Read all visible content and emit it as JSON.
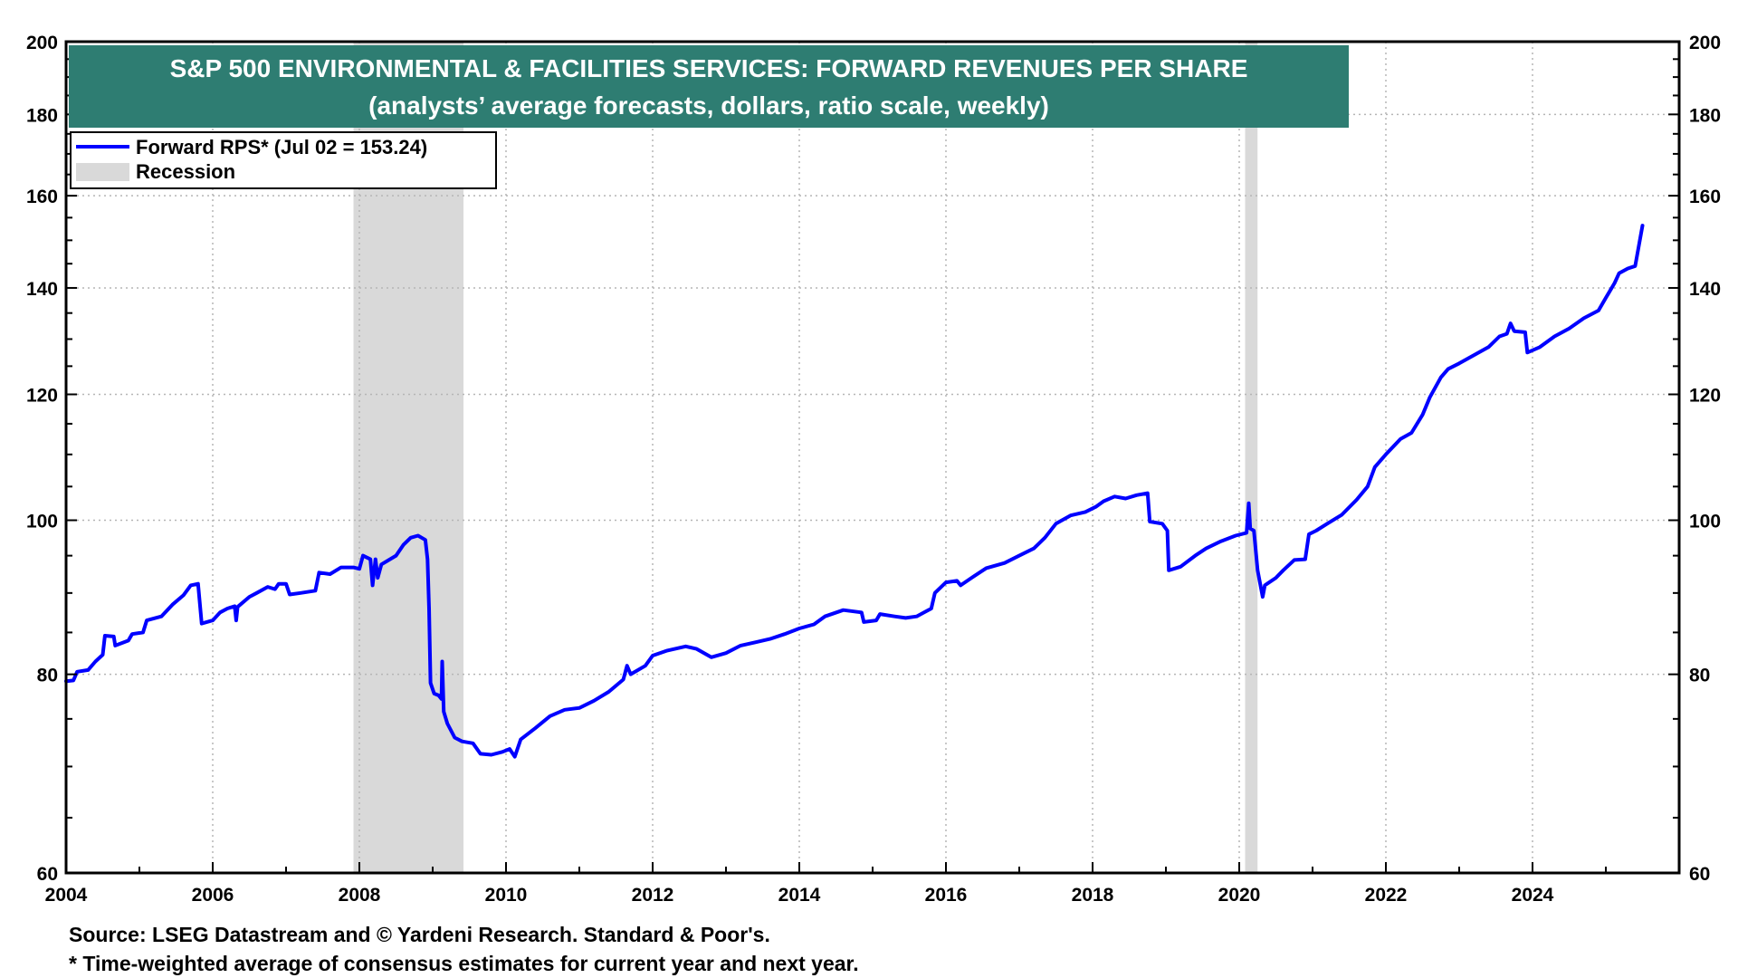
{
  "colors": {
    "title_bg": "#2e7d72",
    "series": "#0000ff",
    "recession": "#d9d9d9",
    "grid": "#b5b5b5"
  },
  "notes": {
    "source": "Source: LSEG Datastream and © Yardeni Research. Standard & Poor's.",
    "footnote": "* Time-weighted average of consensus estimates for current year and next year."
  },
  "chart_data": {
    "type": "line",
    "title": "S&P 500 ENVIRONMENTAL & FACILITIES SERVICES: FORWARD REVENUES PER SHARE",
    "subtitle": "(analysts’ average forecasts, dollars, ratio scale, weekly)",
    "y_scale": "log",
    "xlim": [
      2004,
      2026
    ],
    "ylim": [
      60,
      200
    ],
    "x_ticks": [
      "2004",
      "2006",
      "2008",
      "2010",
      "2012",
      "2014",
      "2016",
      "2018",
      "2020",
      "2022",
      "2024"
    ],
    "y_ticks": [
      "60",
      "80",
      "100",
      "120",
      "140",
      "160",
      "180",
      "200"
    ],
    "grid": true,
    "legend_position": "top-left",
    "legend": [
      {
        "label": "Forward RPS* (Jul 02 = 153.24)",
        "kind": "line"
      },
      {
        "label": "Recession",
        "kind": "band"
      }
    ],
    "recessions": [
      [
        2007.92,
        2009.42
      ],
      [
        2020.08,
        2020.25
      ]
    ],
    "series": [
      {
        "name": "Forward RPS* (Jul 02 = 153.24)",
        "points": [
          [
            2004.0,
            79.2
          ],
          [
            2004.1,
            79.3
          ],
          [
            2004.15,
            80.3
          ],
          [
            2004.3,
            80.5
          ],
          [
            2004.4,
            81.5
          ],
          [
            2004.5,
            82.3
          ],
          [
            2004.53,
            84.6
          ],
          [
            2004.65,
            84.5
          ],
          [
            2004.67,
            83.4
          ],
          [
            2004.85,
            84.0
          ],
          [
            2004.9,
            84.8
          ],
          [
            2005.05,
            85.0
          ],
          [
            2005.1,
            86.5
          ],
          [
            2005.3,
            87.0
          ],
          [
            2005.45,
            88.5
          ],
          [
            2005.6,
            89.7
          ],
          [
            2005.7,
            91.0
          ],
          [
            2005.8,
            91.2
          ],
          [
            2005.85,
            86.1
          ],
          [
            2006.0,
            86.5
          ],
          [
            2006.1,
            87.5
          ],
          [
            2006.2,
            88.0
          ],
          [
            2006.3,
            88.3
          ],
          [
            2006.32,
            86.5
          ],
          [
            2006.34,
            88.2
          ],
          [
            2006.5,
            89.5
          ],
          [
            2006.6,
            90.0
          ],
          [
            2006.75,
            90.8
          ],
          [
            2006.85,
            90.5
          ],
          [
            2006.9,
            91.2
          ],
          [
            2007.0,
            91.2
          ],
          [
            2007.05,
            89.8
          ],
          [
            2007.2,
            90.0
          ],
          [
            2007.4,
            90.3
          ],
          [
            2007.45,
            92.7
          ],
          [
            2007.6,
            92.5
          ],
          [
            2007.75,
            93.4
          ],
          [
            2007.92,
            93.4
          ],
          [
            2008.0,
            93.2
          ],
          [
            2008.05,
            95.0
          ],
          [
            2008.15,
            94.5
          ],
          [
            2008.18,
            91.0
          ],
          [
            2008.22,
            94.5
          ],
          [
            2008.25,
            92.0
          ],
          [
            2008.3,
            93.8
          ],
          [
            2008.5,
            95.0
          ],
          [
            2008.6,
            96.5
          ],
          [
            2008.7,
            97.5
          ],
          [
            2008.8,
            97.8
          ],
          [
            2008.9,
            97.2
          ],
          [
            2008.93,
            94.5
          ],
          [
            2008.95,
            88.0
          ],
          [
            2008.97,
            79.0
          ],
          [
            2009.02,
            77.8
          ],
          [
            2009.08,
            77.6
          ],
          [
            2009.12,
            77.2
          ],
          [
            2009.13,
            81.5
          ],
          [
            2009.15,
            75.8
          ],
          [
            2009.2,
            74.5
          ],
          [
            2009.3,
            73.0
          ],
          [
            2009.4,
            72.6
          ],
          [
            2009.55,
            72.4
          ],
          [
            2009.65,
            71.3
          ],
          [
            2009.8,
            71.2
          ],
          [
            2009.95,
            71.5
          ],
          [
            2010.05,
            71.8
          ],
          [
            2010.12,
            71.0
          ],
          [
            2010.2,
            72.8
          ],
          [
            2010.4,
            74.0
          ],
          [
            2010.6,
            75.3
          ],
          [
            2010.8,
            76.0
          ],
          [
            2011.0,
            76.2
          ],
          [
            2011.2,
            77.0
          ],
          [
            2011.4,
            78.0
          ],
          [
            2011.6,
            79.4
          ],
          [
            2011.65,
            81.0
          ],
          [
            2011.7,
            80.0
          ],
          [
            2011.9,
            81.0
          ],
          [
            2012.0,
            82.2
          ],
          [
            2012.2,
            82.8
          ],
          [
            2012.45,
            83.3
          ],
          [
            2012.6,
            83.0
          ],
          [
            2012.8,
            82.0
          ],
          [
            2013.0,
            82.5
          ],
          [
            2013.2,
            83.4
          ],
          [
            2013.4,
            83.8
          ],
          [
            2013.6,
            84.2
          ],
          [
            2013.8,
            84.8
          ],
          [
            2014.0,
            85.5
          ],
          [
            2014.2,
            86.0
          ],
          [
            2014.35,
            87.0
          ],
          [
            2014.6,
            87.8
          ],
          [
            2014.85,
            87.5
          ],
          [
            2014.88,
            86.3
          ],
          [
            2015.05,
            86.5
          ],
          [
            2015.1,
            87.3
          ],
          [
            2015.3,
            87.0
          ],
          [
            2015.45,
            86.8
          ],
          [
            2015.6,
            87.0
          ],
          [
            2015.8,
            88.0
          ],
          [
            2015.85,
            90.0
          ],
          [
            2016.0,
            91.4
          ],
          [
            2016.15,
            91.6
          ],
          [
            2016.2,
            91.0
          ],
          [
            2016.35,
            92.0
          ],
          [
            2016.55,
            93.3
          ],
          [
            2016.8,
            94.0
          ],
          [
            2017.0,
            95.0
          ],
          [
            2017.2,
            96.0
          ],
          [
            2017.35,
            97.5
          ],
          [
            2017.5,
            99.5
          ],
          [
            2017.7,
            100.7
          ],
          [
            2017.9,
            101.2
          ],
          [
            2018.05,
            102.0
          ],
          [
            2018.15,
            102.8
          ],
          [
            2018.3,
            103.5
          ],
          [
            2018.45,
            103.2
          ],
          [
            2018.6,
            103.7
          ],
          [
            2018.75,
            104.0
          ],
          [
            2018.78,
            99.8
          ],
          [
            2018.95,
            99.5
          ],
          [
            2019.02,
            98.5
          ],
          [
            2019.04,
            93.0
          ],
          [
            2019.2,
            93.5
          ],
          [
            2019.4,
            95.0
          ],
          [
            2019.55,
            96.0
          ],
          [
            2019.75,
            97.0
          ],
          [
            2019.95,
            97.8
          ],
          [
            2020.1,
            98.2
          ],
          [
            2020.13,
            102.5
          ],
          [
            2020.15,
            98.8
          ],
          [
            2020.2,
            98.5
          ],
          [
            2020.25,
            93.0
          ],
          [
            2020.32,
            89.5
          ],
          [
            2020.35,
            91.0
          ],
          [
            2020.5,
            92.0
          ],
          [
            2020.6,
            93.0
          ],
          [
            2020.75,
            94.4
          ],
          [
            2020.9,
            94.5
          ],
          [
            2020.95,
            98.0
          ],
          [
            2021.05,
            98.5
          ],
          [
            2021.2,
            99.5
          ],
          [
            2021.4,
            100.8
          ],
          [
            2021.6,
            103.0
          ],
          [
            2021.75,
            105.0
          ],
          [
            2021.85,
            108.0
          ],
          [
            2022.0,
            110.0
          ],
          [
            2022.2,
            112.5
          ],
          [
            2022.35,
            113.5
          ],
          [
            2022.5,
            116.5
          ],
          [
            2022.6,
            119.5
          ],
          [
            2022.75,
            123.0
          ],
          [
            2022.85,
            124.5
          ],
          [
            2023.0,
            125.5
          ],
          [
            2023.2,
            127.0
          ],
          [
            2023.4,
            128.5
          ],
          [
            2023.55,
            130.5
          ],
          [
            2023.65,
            131.0
          ],
          [
            2023.7,
            133.0
          ],
          [
            2023.75,
            131.5
          ],
          [
            2023.9,
            131.3
          ],
          [
            2023.93,
            127.5
          ],
          [
            2024.1,
            128.5
          ],
          [
            2024.3,
            130.5
          ],
          [
            2024.5,
            132.0
          ],
          [
            2024.7,
            134.0
          ],
          [
            2024.9,
            135.5
          ],
          [
            2025.0,
            138.0
          ],
          [
            2025.12,
            141.0
          ],
          [
            2025.18,
            143.0
          ],
          [
            2025.3,
            144.0
          ],
          [
            2025.4,
            144.5
          ],
          [
            2025.5,
            153.24
          ]
        ]
      }
    ]
  }
}
